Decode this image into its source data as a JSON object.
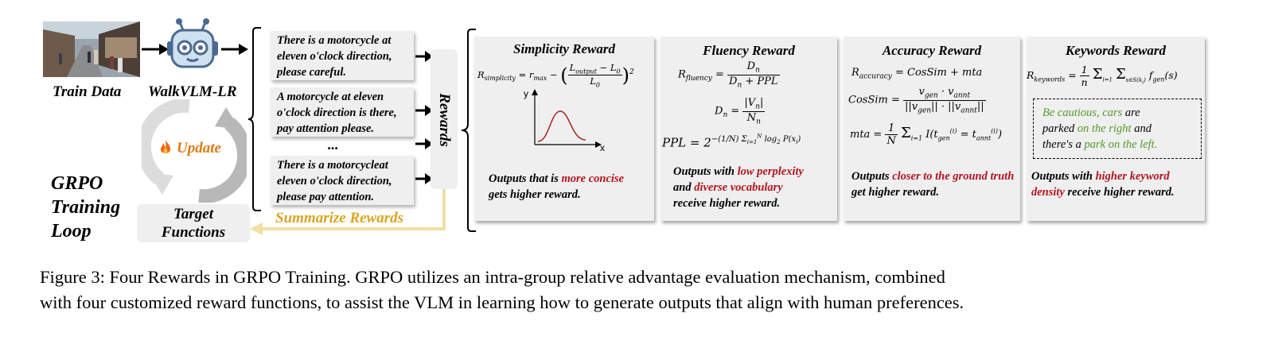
{
  "left": {
    "train_label": "Train Data",
    "model_label": "WalkVLM-LR",
    "update_label": "Update",
    "grpo_label_lines": [
      "GRPO",
      "Training",
      "Loop"
    ],
    "target_label_lines": [
      "Target",
      "Functions"
    ],
    "summarize_label": "Summarize Rewards"
  },
  "outputs": [
    {
      "lines": [
        "There is a motorcycle at",
        "eleven o'clock direction,",
        "please careful."
      ]
    },
    {
      "lines": [
        "A motorcycle at eleven",
        "o'clock direction is there,",
        "pay attention please."
      ]
    },
    {
      "lines": [
        "There is a motorcycleat",
        "eleven o'clock direction,",
        "please pay attention."
      ]
    }
  ],
  "ellipsis": "...",
  "rewards_label": "Rewards",
  "rewards": {
    "simplicity": {
      "title": "Simplicity Reward",
      "desc_pre": "Outputs that is ",
      "desc_red": "more concise",
      "desc_post": "gets higher reward."
    },
    "fluency": {
      "title": "Fluency Reward",
      "desc_pre": "Outputs with ",
      "desc_red1": "low perplexity",
      "desc_mid": "and ",
      "desc_red2": "diverse vocabulary",
      "desc_post": "receive higher reward."
    },
    "accuracy": {
      "title": "Accuracy Reward",
      "desc_pre": "Outputs ",
      "desc_red": "closer to the ground truth",
      "desc_post": " get higher reward."
    },
    "keywords": {
      "title": "Keywords Reward",
      "example_l1_green": "Be cautious, cars",
      "example_l1_post": " are",
      "example_l2_pre": "parked ",
      "example_l2_green": "on the right",
      "example_l2_post": " and",
      "example_l3_pre": "there's a ",
      "example_l3_green": "park on the left.",
      "desc_pre": "Outputs with ",
      "desc_red": "higher keyword density",
      "desc_post": " receive higher reward."
    }
  },
  "plot_labels": {
    "y": "y",
    "x": "x"
  },
  "caption": {
    "line1": "Figure 3: Four Rewards in GRPO Training. GRPO utilizes an intra-group relative advantage evaluation mechanism, combined",
    "line2": "with four customized reward functions, to assist the VLM in learning how to generate outputs that align with human preferences."
  },
  "colors": {
    "red": "#b3141f",
    "green": "#4f9a2a",
    "orange": "#e4a42a",
    "summarize": "#d9a520",
    "card_bg": "#efefef"
  },
  "icons": [
    "street-photo",
    "robot-icon",
    "fire-icon",
    "arrow-icon"
  ]
}
